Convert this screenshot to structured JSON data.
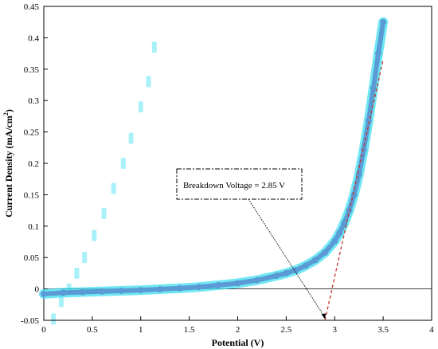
{
  "chart_data": {
    "type": "scatter",
    "xlabel": "Potential (V)",
    "ylabel_main": "Current Density (mA/cm",
    "ylabel_sup": "2",
    "ylabel_tail": ")",
    "xlim": [
      0,
      4
    ],
    "ylim": [
      -0.05,
      0.45
    ],
    "x_ticks": [
      0,
      0.5,
      1,
      1.5,
      2,
      2.5,
      3,
      3.5,
      4
    ],
    "x_tick_labels": [
      "0",
      "0.5",
      "1",
      "1.5",
      "2",
      "2.5",
      "3",
      "3.5",
      "4"
    ],
    "y_ticks": [
      -0.05,
      0,
      0.05,
      0.1,
      0.15,
      0.2,
      0.25,
      0.3,
      0.35,
      0.4,
      0.45
    ],
    "y_tick_labels": [
      "-0.05",
      "0",
      "0.05",
      "0.1",
      "0.15",
      "0.2",
      "0.25",
      "0.3",
      "0.35",
      "0.4",
      "0.45"
    ],
    "grid": false,
    "series": [
      {
        "color": "#5b9bd5",
        "glow_color": "#40e0f0",
        "x": [
          0,
          0.2,
          0.4,
          0.6,
          0.8,
          1.0,
          1.2,
          1.4,
          1.6,
          1.8,
          2.0,
          2.2,
          2.4,
          2.5,
          2.6,
          2.7,
          2.8,
          2.9,
          3.0,
          3.05,
          3.1,
          3.15,
          3.2,
          3.25,
          3.3,
          3.35,
          3.4,
          3.45,
          3.5
        ],
        "y": [
          -0.008,
          -0.006,
          -0.005,
          -0.004,
          -0.003,
          -0.002,
          -0.0005,
          0.001,
          0.003,
          0.006,
          0.009,
          0.014,
          0.021,
          0.025,
          0.03,
          0.037,
          0.046,
          0.058,
          0.076,
          0.089,
          0.105,
          0.125,
          0.15,
          0.182,
          0.222,
          0.268,
          0.32,
          0.375,
          0.425
        ]
      }
    ],
    "tangent_line": {
      "color": "#c0392b",
      "x": [
        2.9,
        3.5
      ],
      "y": [
        -0.05,
        0.365
      ]
    },
    "annotation": {
      "text": "Breakdown Voltage = 2.85 V",
      "arrow_to": {
        "x": 2.9,
        "y": -0.048
      }
    },
    "faint_offset_series": {
      "color": "#40e0f0",
      "x": [
        0.1,
        0.18,
        0.26,
        0.34,
        0.42,
        0.52,
        0.62,
        0.72,
        0.82,
        0.9,
        1.0,
        1.08,
        1.14
      ],
      "y": [
        -0.048,
        -0.02,
        0.0,
        0.025,
        0.05,
        0.085,
        0.12,
        0.16,
        0.2,
        0.24,
        0.29,
        0.33,
        0.385
      ]
    }
  }
}
